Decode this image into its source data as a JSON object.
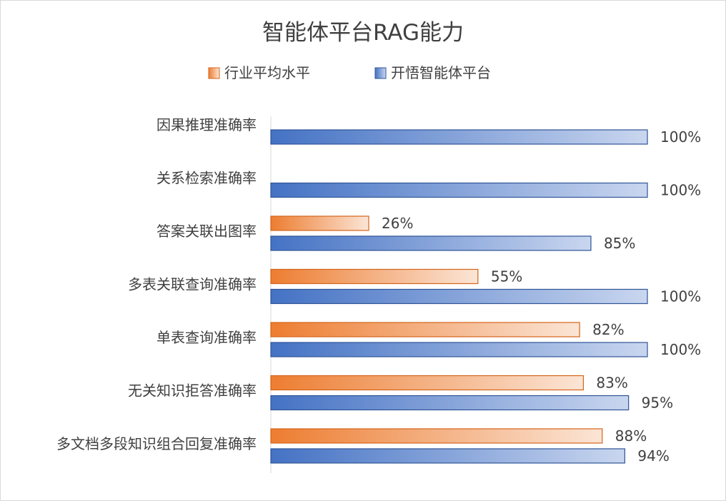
{
  "chart_data": {
    "type": "bar",
    "orientation": "horizontal",
    "title": "智能体平台RAG能力",
    "categories": [
      "因果推理准确率",
      "关系检索准确率",
      "答案关联出图率",
      "多表关联查询准确率",
      "单表查询准确率",
      "无关知识拒答准确率",
      "多文档多段知识组合回复准确率"
    ],
    "series": [
      {
        "name": "行业平均水平",
        "values": [
          null,
          null,
          26,
          55,
          82,
          83,
          88
        ],
        "labels": [
          "",
          "",
          "26%",
          "55%",
          "82%",
          "83%",
          "88%"
        ],
        "color": "#ed7d31"
      },
      {
        "name": "开悟智能体平台",
        "values": [
          100,
          100,
          85,
          100,
          100,
          95,
          94
        ],
        "labels": [
          "100%",
          "100%",
          "85%",
          "100%",
          "100%",
          "95%",
          "94%"
        ],
        "color": "#4472c4"
      }
    ],
    "xlim": [
      0,
      100
    ],
    "unit": "%",
    "legend_position": "top",
    "grid": false
  }
}
